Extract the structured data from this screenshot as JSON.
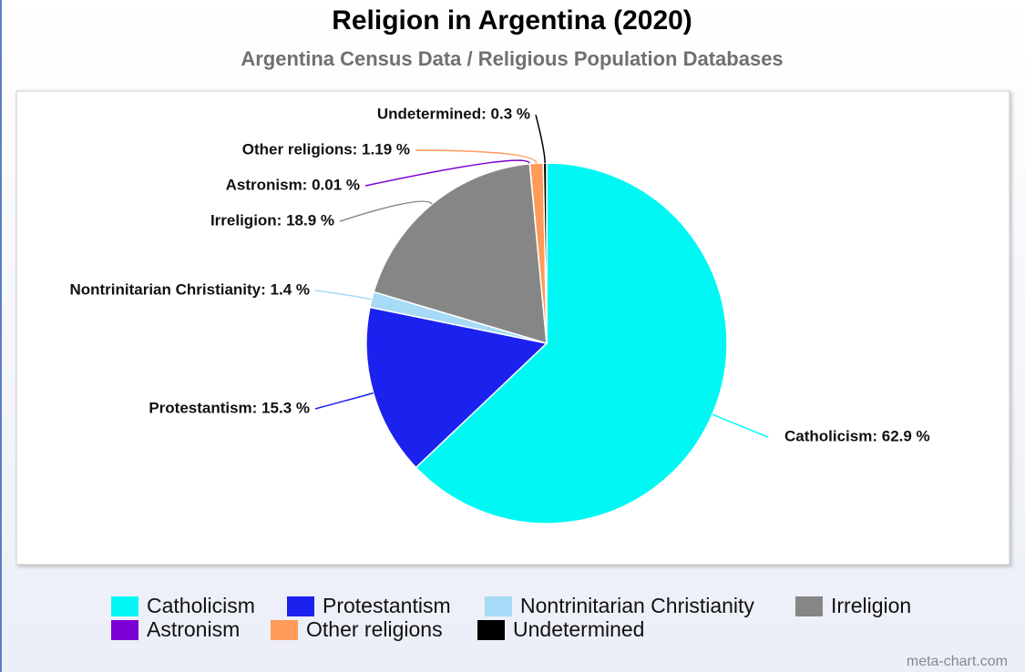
{
  "chart_data": {
    "type": "pie",
    "title": "Religion in Argentina (2020)",
    "subtitle": "Argentina Census Data / Religious Population Databases",
    "categories": [
      "Catholicism",
      "Protestantism",
      "Nontrinitarian Christianity",
      "Irreligion",
      "Astronism",
      "Other religions",
      "Undetermined"
    ],
    "values": [
      62.9,
      15.3,
      1.4,
      18.9,
      0.01,
      1.19,
      0.3
    ],
    "value_labels": [
      "Catholicism: 62.9 %",
      "Protestantism: 15.3 %",
      "Nontrinitarian Christianity: 1.4 %",
      "Irreligion: 18.9 %",
      "Astronism: 0.01 %",
      "Other religions: 1.19 %",
      "Undetermined: 0.3 %"
    ],
    "colors": [
      "#00f8f4",
      "#1c22ee",
      "#a6daf6",
      "#868686",
      "#7c00d6",
      "#ff9a58",
      "#000000"
    ],
    "watermark": "meta-chart.com"
  }
}
